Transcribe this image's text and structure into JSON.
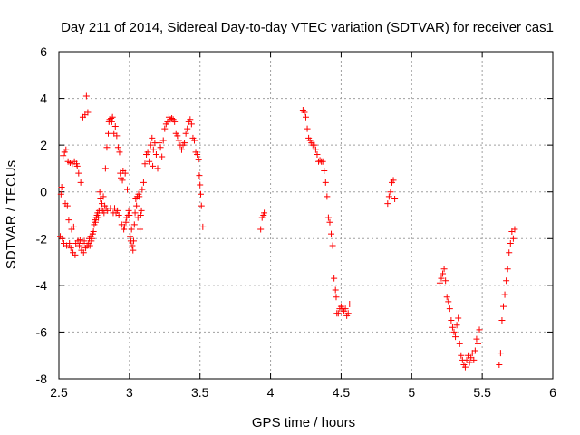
{
  "chart_data": {
    "type": "scatter",
    "title": "Day 211 of 2014, Sidereal Day-to-day VTEC variation (SDTVAR) for receiver cas1",
    "xlabel": "GPS time / hours",
    "ylabel": "SDTVAR / TECUs",
    "xlim": [
      2.5,
      6
    ],
    "ylim": [
      -8,
      6
    ],
    "xticks": [
      2.5,
      3,
      3.5,
      4,
      4.5,
      5,
      5.5,
      6
    ],
    "xtick_labels": [
      "2.5",
      "3",
      "3.5",
      "4",
      "4.5",
      "5",
      "5.5",
      "6"
    ],
    "yticks": [
      -8,
      -6,
      -4,
      -2,
      0,
      2,
      4,
      6
    ],
    "ytick_labels": [
      "-8",
      "-6",
      "-4",
      "-2",
      "0",
      "2",
      "4",
      "6"
    ],
    "grid": true,
    "marker": "+",
    "color": "#ff0000",
    "series": [
      {
        "name": "cas1",
        "points": [
          [
            2.51,
            -1.9
          ],
          [
            2.515,
            -0.1
          ],
          [
            2.52,
            0.2
          ],
          [
            2.525,
            -2.0
          ],
          [
            2.53,
            1.55
          ],
          [
            2.535,
            -2.2
          ],
          [
            2.54,
            1.7
          ],
          [
            2.545,
            -0.5
          ],
          [
            2.55,
            1.8
          ],
          [
            2.555,
            -2.3
          ],
          [
            2.56,
            -0.6
          ],
          [
            2.565,
            1.3
          ],
          [
            2.57,
            -1.2
          ],
          [
            2.575,
            -2.2
          ],
          [
            2.58,
            1.25
          ],
          [
            2.585,
            -2.4
          ],
          [
            2.59,
            -1.6
          ],
          [
            2.595,
            1.2
          ],
          [
            2.6,
            -2.6
          ],
          [
            2.605,
            -1.5
          ],
          [
            2.61,
            1.3
          ],
          [
            2.615,
            -2.7
          ],
          [
            2.62,
            -2.2
          ],
          [
            2.625,
            1.2
          ],
          [
            2.63,
            1.1
          ],
          [
            2.635,
            -2.1
          ],
          [
            2.64,
            0.8
          ],
          [
            2.645,
            -2.3
          ],
          [
            2.65,
            -2.05
          ],
          [
            2.655,
            0.4
          ],
          [
            2.66,
            -2.5
          ],
          [
            2.665,
            -2.2
          ],
          [
            2.67,
            3.2
          ],
          [
            2.675,
            -2.6
          ],
          [
            2.68,
            -2.1
          ],
          [
            2.685,
            3.3
          ],
          [
            2.69,
            -2.4
          ],
          [
            2.695,
            4.1
          ],
          [
            2.7,
            -2.3
          ],
          [
            2.705,
            3.4
          ],
          [
            2.71,
            -2.2
          ],
          [
            2.715,
            -2.0
          ],
          [
            2.72,
            -2.3
          ],
          [
            2.725,
            -1.9
          ],
          [
            2.73,
            -2.1
          ],
          [
            2.735,
            -2.0
          ],
          [
            2.74,
            -1.8
          ],
          [
            2.745,
            -1.7
          ],
          [
            2.75,
            -1.4
          ],
          [
            2.755,
            -1.2
          ],
          [
            2.76,
            -1.3
          ],
          [
            2.765,
            -1.1
          ],
          [
            2.77,
            -1.0
          ],
          [
            2.775,
            -0.9
          ],
          [
            2.78,
            -1.1
          ],
          [
            2.785,
            -0.8
          ],
          [
            2.79,
            0.0
          ],
          [
            2.795,
            -0.3
          ],
          [
            2.8,
            -0.7
          ],
          [
            2.805,
            -0.5
          ],
          [
            2.81,
            -0.8
          ],
          [
            2.815,
            -0.2
          ],
          [
            2.82,
            -0.9
          ],
          [
            2.825,
            -0.6
          ],
          [
            2.83,
            1.0
          ],
          [
            2.835,
            -0.7
          ],
          [
            2.84,
            1.9
          ],
          [
            2.845,
            -0.8
          ],
          [
            2.85,
            2.5
          ],
          [
            2.855,
            3.0
          ],
          [
            2.86,
            3.1
          ],
          [
            2.865,
            -0.7
          ],
          [
            2.87,
            3.15
          ],
          [
            2.875,
            3.0
          ],
          [
            2.88,
            3.2
          ],
          [
            2.885,
            -0.9
          ],
          [
            2.89,
            2.5
          ],
          [
            2.895,
            -0.7
          ],
          [
            2.9,
            2.8
          ],
          [
            2.905,
            -0.9
          ],
          [
            2.91,
            2.4
          ],
          [
            2.915,
            -0.8
          ],
          [
            2.92,
            1.9
          ],
          [
            2.925,
            -1.0
          ],
          [
            2.93,
            1.7
          ],
          [
            2.935,
            0.8
          ],
          [
            2.94,
            0.6
          ],
          [
            2.945,
            -1.4
          ],
          [
            2.95,
            0.5
          ],
          [
            2.955,
            0.9
          ],
          [
            2.96,
            -1.6
          ],
          [
            2.965,
            -1.5
          ],
          [
            2.97,
            0.8
          ],
          [
            2.975,
            -1.3
          ],
          [
            2.98,
            -1.1
          ],
          [
            2.985,
            0.1
          ],
          [
            2.99,
            -1.0
          ],
          [
            2.995,
            -0.8
          ],
          [
            3.0,
            -1.0
          ],
          [
            3.005,
            -1.9
          ],
          [
            3.01,
            -2.1
          ],
          [
            3.015,
            -1.6
          ],
          [
            3.02,
            -2.3
          ],
          [
            3.025,
            -2.5
          ],
          [
            3.03,
            -2.1
          ],
          [
            3.035,
            -1.4
          ],
          [
            3.04,
            -0.9
          ],
          [
            3.045,
            -0.3
          ],
          [
            3.05,
            -0.6
          ],
          [
            3.055,
            -0.2
          ],
          [
            3.06,
            -1.1
          ],
          [
            3.065,
            -0.1
          ],
          [
            3.07,
            -0.2
          ],
          [
            3.075,
            -1.6
          ],
          [
            3.08,
            -1.0
          ],
          [
            3.085,
            -0.8
          ],
          [
            3.09,
            0.1
          ],
          [
            3.1,
            0.4
          ],
          [
            3.11,
            1.2
          ],
          [
            3.12,
            1.6
          ],
          [
            3.13,
            1.7
          ],
          [
            3.14,
            1.3
          ],
          [
            3.15,
            2.0
          ],
          [
            3.16,
            2.3
          ],
          [
            3.165,
            1.1
          ],
          [
            3.17,
            1.8
          ],
          [
            3.18,
            2.1
          ],
          [
            3.19,
            1.6
          ],
          [
            3.2,
            1.0
          ],
          [
            3.21,
            2.1
          ],
          [
            3.22,
            1.9
          ],
          [
            3.23,
            1.5
          ],
          [
            3.24,
            2.2
          ],
          [
            3.25,
            2.7
          ],
          [
            3.26,
            2.9
          ],
          [
            3.27,
            3.0
          ],
          [
            3.28,
            3.2
          ],
          [
            3.29,
            3.1
          ],
          [
            3.3,
            3.15
          ],
          [
            3.31,
            3.1
          ],
          [
            3.32,
            3.0
          ],
          [
            3.33,
            2.5
          ],
          [
            3.34,
            2.4
          ],
          [
            3.35,
            2.2
          ],
          [
            3.36,
            2.0
          ],
          [
            3.37,
            1.8
          ],
          [
            3.38,
            2.0
          ],
          [
            3.39,
            2.1
          ],
          [
            3.4,
            2.5
          ],
          [
            3.41,
            2.7
          ],
          [
            3.42,
            3.0
          ],
          [
            3.43,
            3.1
          ],
          [
            3.44,
            2.9
          ],
          [
            3.45,
            2.3
          ],
          [
            3.46,
            2.2
          ],
          [
            3.47,
            1.7
          ],
          [
            3.48,
            1.6
          ],
          [
            3.49,
            1.4
          ],
          [
            3.495,
            0.7
          ],
          [
            3.5,
            0.3
          ],
          [
            3.505,
            -0.1
          ],
          [
            3.51,
            -0.6
          ],
          [
            3.52,
            -1.5
          ],
          [
            3.93,
            -1.6
          ],
          [
            3.94,
            -1.1
          ],
          [
            3.95,
            -1.0
          ],
          [
            3.955,
            -0.9
          ],
          [
            4.23,
            3.5
          ],
          [
            4.24,
            3.4
          ],
          [
            4.25,
            3.2
          ],
          [
            4.26,
            2.7
          ],
          [
            4.27,
            2.3
          ],
          [
            4.28,
            2.2
          ],
          [
            4.29,
            2.1
          ],
          [
            4.3,
            2.0
          ],
          [
            4.31,
            2.0
          ],
          [
            4.32,
            1.8
          ],
          [
            4.33,
            1.6
          ],
          [
            4.34,
            1.3
          ],
          [
            4.35,
            1.35
          ],
          [
            4.36,
            1.3
          ],
          [
            4.37,
            1.3
          ],
          [
            4.38,
            0.9
          ],
          [
            4.39,
            0.4
          ],
          [
            4.4,
            -0.2
          ],
          [
            4.41,
            -1.1
          ],
          [
            4.42,
            -1.3
          ],
          [
            4.43,
            -1.8
          ],
          [
            4.44,
            -2.3
          ],
          [
            4.45,
            -3.7
          ],
          [
            4.46,
            -4.2
          ],
          [
            4.465,
            -4.5
          ],
          [
            4.47,
            -5.2
          ],
          [
            4.48,
            -5.2
          ],
          [
            4.49,
            -5.0
          ],
          [
            4.5,
            -4.9
          ],
          [
            4.51,
            -5.0
          ],
          [
            4.52,
            -5.1
          ],
          [
            4.53,
            -5.0
          ],
          [
            4.54,
            -5.3
          ],
          [
            4.55,
            -5.2
          ],
          [
            4.56,
            -4.8
          ],
          [
            4.83,
            -0.5
          ],
          [
            4.84,
            -0.2
          ],
          [
            4.85,
            0.0
          ],
          [
            4.86,
            0.4
          ],
          [
            4.87,
            0.5
          ],
          [
            4.88,
            -0.3
          ],
          [
            5.2,
            -3.9
          ],
          [
            5.21,
            -3.7
          ],
          [
            5.22,
            -3.5
          ],
          [
            5.23,
            -3.3
          ],
          [
            5.24,
            -3.8
          ],
          [
            5.25,
            -4.5
          ],
          [
            5.26,
            -4.7
          ],
          [
            5.27,
            -5.0
          ],
          [
            5.28,
            -5.5
          ],
          [
            5.29,
            -5.8
          ],
          [
            5.3,
            -6.0
          ],
          [
            5.31,
            -6.2
          ],
          [
            5.32,
            -5.7
          ],
          [
            5.33,
            -5.4
          ],
          [
            5.34,
            -6.5
          ],
          [
            5.35,
            -7.0
          ],
          [
            5.36,
            -7.2
          ],
          [
            5.37,
            -7.4
          ],
          [
            5.38,
            -7.5
          ],
          [
            5.39,
            -7.2
          ],
          [
            5.4,
            -7.0
          ],
          [
            5.41,
            -7.3
          ],
          [
            5.42,
            -7.1
          ],
          [
            5.43,
            -6.9
          ],
          [
            5.44,
            -7.2
          ],
          [
            5.45,
            -6.8
          ],
          [
            5.46,
            -6.3
          ],
          [
            5.47,
            -6.5
          ],
          [
            5.48,
            -5.9
          ],
          [
            5.62,
            -7.4
          ],
          [
            5.63,
            -6.9
          ],
          [
            5.64,
            -5.5
          ],
          [
            5.65,
            -4.9
          ],
          [
            5.66,
            -4.4
          ],
          [
            5.67,
            -3.8
          ],
          [
            5.68,
            -3.3
          ],
          [
            5.69,
            -2.6
          ],
          [
            5.7,
            -2.2
          ],
          [
            5.71,
            -1.7
          ],
          [
            5.72,
            -2.0
          ],
          [
            5.73,
            -1.6
          ]
        ]
      }
    ]
  }
}
